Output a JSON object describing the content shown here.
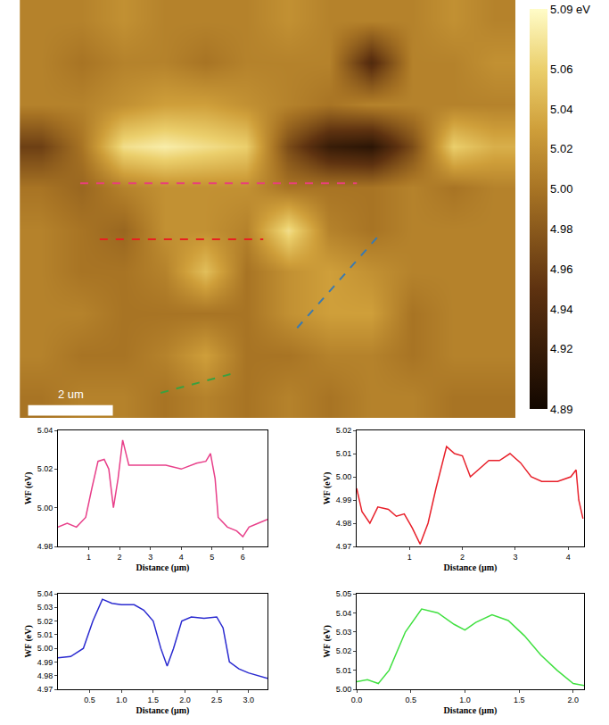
{
  "chart_data": [
    {
      "type": "heatmap",
      "x": [
        0.49,
        1.46,
        2.44,
        3.41,
        4.39,
        5.36,
        6.34,
        7.31,
        8.29,
        9.26,
        10.24,
        11.21
      ],
      "y": [
        0.49,
        1.48,
        2.46,
        3.45,
        4.43,
        5.42,
        6.4,
        7.39,
        8.37,
        9.36
      ],
      "cells": [
        [
          5.01,
          5.01,
          5.02,
          5.01,
          5.01,
          5.01,
          5.02,
          5.01,
          5.01,
          5.01,
          5.02,
          5.01
        ],
        [
          5.01,
          5.0,
          5.01,
          5.01,
          5.0,
          5.01,
          5.01,
          5.01,
          4.94,
          5.01,
          5.01,
          5.02
        ],
        [
          5.01,
          5.01,
          5.02,
          5.03,
          5.03,
          5.02,
          5.01,
          5.0,
          5.01,
          5.01,
          5.01,
          5.01
        ],
        [
          4.96,
          5.0,
          5.07,
          5.08,
          5.07,
          5.06,
          4.97,
          4.92,
          4.91,
          4.97,
          5.06,
          5.04
        ],
        [
          5.0,
          4.99,
          5.01,
          5.02,
          5.02,
          5.02,
          5.0,
          5.0,
          5.0,
          5.01,
          5.0,
          5.01
        ],
        [
          5.01,
          5.0,
          4.99,
          5.02,
          5.02,
          5.01,
          5.07,
          5.01,
          5.0,
          5.01,
          5.01,
          5.01
        ],
        [
          5.01,
          5.0,
          5.0,
          5.01,
          5.05,
          5.0,
          5.02,
          5.03,
          5.02,
          5.01,
          5.01,
          5.01
        ],
        [
          5.01,
          5.01,
          5.0,
          5.0,
          5.0,
          5.0,
          5.02,
          5.03,
          5.03,
          5.0,
          5.01,
          5.01
        ],
        [
          5.01,
          5.0,
          5.0,
          5.01,
          5.03,
          5.0,
          5.0,
          5.01,
          5.01,
          5.0,
          5.01,
          5.01
        ],
        [
          5.0,
          5.01,
          5.01,
          5.0,
          5.01,
          5.0,
          5.01,
          5.0,
          5.01,
          5.01,
          5.0,
          5.0
        ]
      ],
      "xlim": [
        0,
        11.7
      ],
      "ylim": [
        9.85,
        0
      ],
      "tick_labels": false,
      "colorbar": {
        "range": [
          4.89,
          5.09
        ],
        "ticks": [
          {
            "value": 5.09,
            "label": "5.09 eV"
          },
          5.06,
          5.04,
          5.02,
          {
            "value": 5.0,
            "label": "5.00"
          },
          4.98,
          4.96,
          4.94,
          4.92,
          4.89
        ]
      },
      "scale_bar": {
        "length": 2,
        "label": "2 um"
      },
      "profile_lines": [
        {
          "color": "#e8407a",
          "x": [
            1.43,
            7.96
          ],
          "y": [
            4.32,
            4.32
          ]
        },
        {
          "color": "#e82020",
          "x": [
            1.89,
            5.75
          ],
          "y": [
            5.64,
            5.64
          ]
        },
        {
          "color": "#3a7ab0",
          "x": [
            6.55,
            8.55
          ],
          "y": [
            7.73,
            5.47
          ]
        },
        {
          "color": "#3aa040",
          "x": [
            3.33,
            5.05
          ],
          "y": [
            9.26,
            8.8
          ]
        }
      ]
    },
    {
      "type": "line",
      "color": "#e8408a",
      "xlabel": "Distance (µm)",
      "ylabel": "WF (eV)",
      "x": [
        0,
        0.3,
        0.6,
        0.9,
        1.1,
        1.3,
        1.5,
        1.65,
        1.8,
        1.95,
        2.1,
        2.3,
        2.6,
        3,
        3.5,
        4,
        4.5,
        4.8,
        4.95,
        5.1,
        5.2,
        5.5,
        5.8,
        6,
        6.2,
        6.5,
        6.8
      ],
      "values": [
        4.99,
        4.992,
        4.99,
        4.995,
        5.01,
        5.024,
        5.025,
        5.02,
        5.0,
        5.015,
        5.035,
        5.022,
        5.022,
        5.022,
        5.022,
        5.02,
        5.023,
        5.024,
        5.028,
        5.015,
        4.995,
        4.99,
        4.988,
        4.985,
        4.99,
        4.992,
        4.994
      ],
      "xlim": [
        0,
        6.8
      ],
      "ylim": [
        4.98,
        5.04
      ],
      "xticks": [
        1,
        2,
        3,
        4,
        5,
        6
      ],
      "yticks": [
        4.98,
        {
          "value": 5.0,
          "label": "5.00"
        },
        5.02,
        5.04
      ]
    },
    {
      "type": "line",
      "color": "#e8202a",
      "xlabel": "Distance (µm)",
      "ylabel": "WF (eV)",
      "x": [
        0,
        0.1,
        0.25,
        0.4,
        0.6,
        0.75,
        0.9,
        1.05,
        1.2,
        1.35,
        1.5,
        1.7,
        1.85,
        2.0,
        2.15,
        2.3,
        2.5,
        2.7,
        2.9,
        3.1,
        3.3,
        3.5,
        3.8,
        4.05,
        4.15,
        4.2,
        4.28
      ],
      "values": [
        4.995,
        4.985,
        4.98,
        4.987,
        4.986,
        4.983,
        4.984,
        4.978,
        4.971,
        4.98,
        4.995,
        5.013,
        5.01,
        5.009,
        5.0,
        5.003,
        5.007,
        5.007,
        5.01,
        5.006,
        5.0,
        4.998,
        4.998,
        5.0,
        5.003,
        4.99,
        4.982
      ],
      "xlim": [
        0,
        4.3
      ],
      "ylim": [
        4.97,
        5.02
      ],
      "xticks": [
        1,
        2,
        3,
        4
      ],
      "yticks": [
        4.97,
        4.98,
        4.99,
        {
          "value": 5.0,
          "label": "5.00"
        },
        5.01,
        5.02
      ]
    },
    {
      "type": "line",
      "color": "#2a2ad0",
      "xlabel": "Distance (µm)",
      "ylabel": "WF (eV)",
      "x": [
        0,
        0.2,
        0.4,
        0.55,
        0.7,
        0.85,
        1.0,
        1.2,
        1.35,
        1.5,
        1.62,
        1.72,
        1.82,
        1.95,
        2.1,
        2.3,
        2.5,
        2.6,
        2.7,
        2.85,
        3.0,
        3.2,
        3.3
      ],
      "values": [
        4.993,
        4.994,
        5.0,
        5.02,
        5.036,
        5.033,
        5.032,
        5.032,
        5.028,
        5.02,
        5.0,
        4.987,
        5.0,
        5.02,
        5.023,
        5.022,
        5.023,
        5.015,
        4.99,
        4.985,
        4.982,
        4.979,
        4.978
      ],
      "xlim": [
        0,
        3.3
      ],
      "ylim": [
        4.97,
        5.04
      ],
      "xticks": [
        0.5,
        {
          "value": 1.0,
          "label": "1.0"
        },
        1.5,
        {
          "value": 2.0,
          "label": "2.0"
        },
        2.5,
        {
          "value": 3.0,
          "label": "3.0"
        }
      ],
      "yticks": [
        4.97,
        4.98,
        4.99,
        {
          "value": 5.0,
          "label": "5.00"
        },
        5.01,
        5.02,
        5.03,
        5.04
      ]
    },
    {
      "type": "line",
      "color": "#40e040",
      "xlabel": "Distance (µm)",
      "ylabel": "WF (eV)",
      "x": [
        0,
        0.1,
        0.2,
        0.3,
        0.45,
        0.6,
        0.75,
        0.9,
        1.0,
        1.1,
        1.25,
        1.4,
        1.55,
        1.7,
        1.85,
        2.0,
        2.1
      ],
      "values": [
        5.004,
        5.005,
        5.003,
        5.01,
        5.03,
        5.042,
        5.04,
        5.034,
        5.031,
        5.035,
        5.039,
        5.036,
        5.028,
        5.018,
        5.01,
        5.003,
        5.002
      ],
      "xlim": [
        0,
        2.1
      ],
      "ylim": [
        5.0,
        5.05
      ],
      "xticks": [
        {
          "value": 0,
          "label": "0.0"
        },
        0.5,
        {
          "value": 1.0,
          "label": "1.0"
        },
        1.5,
        {
          "value": 2.0,
          "label": "2.0"
        }
      ],
      "yticks": [
        {
          "value": 5.0,
          "label": "5.00"
        },
        5.01,
        5.02,
        5.03,
        5.04,
        5.05
      ]
    }
  ]
}
